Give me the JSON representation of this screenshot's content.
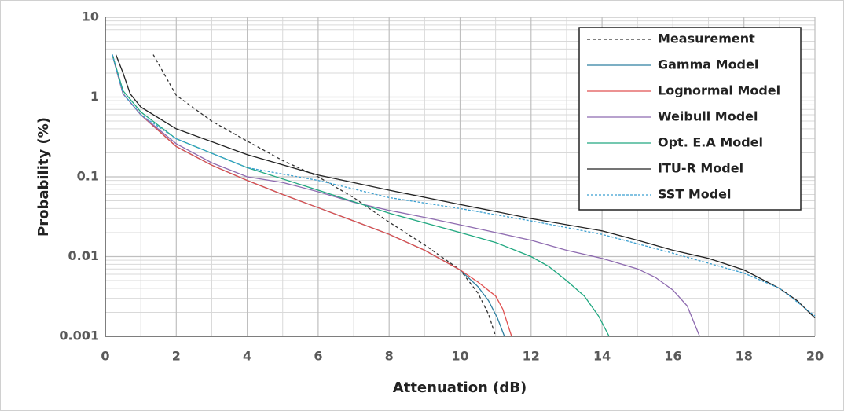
{
  "chart_data": {
    "type": "line",
    "xlabel": "Attenuation (dB)",
    "ylabel": "Probability (%)",
    "xlim": [
      0,
      20
    ],
    "ylim": [
      0.001,
      10
    ],
    "yscale": "log",
    "xticks": [
      0,
      2,
      4,
      6,
      8,
      10,
      12,
      14,
      16,
      18,
      20
    ],
    "xminorticks": [
      1,
      3,
      5,
      7,
      9,
      11,
      13,
      15,
      17,
      19
    ],
    "yticks": [
      0.001,
      0.01,
      0.1,
      1,
      10
    ],
    "yminorticks": [
      0.002,
      0.003,
      0.004,
      0.005,
      0.006,
      0.007,
      0.008,
      0.009,
      0.02,
      0.03,
      0.04,
      0.05,
      0.06,
      0.07,
      0.08,
      0.09,
      0.2,
      0.3,
      0.4,
      0.5,
      0.6,
      0.7,
      0.8,
      0.9,
      2,
      3,
      4,
      5,
      6,
      7,
      8,
      9
    ],
    "grid": true,
    "legend": "upper right",
    "series": [
      {
        "name": "Measurement",
        "color": "#333333",
        "style": "dashed",
        "x": [
          1.35,
          2,
          3,
          4,
          5,
          6,
          7,
          8,
          9,
          10,
          10.5,
          10.8,
          11
        ],
        "values": [
          3.4,
          1.05,
          0.5,
          0.28,
          0.16,
          0.1,
          0.055,
          0.027,
          0.014,
          0.0068,
          0.0035,
          0.0019,
          0.001
        ]
      },
      {
        "name": "Gamma Model",
        "color": "#2e7fa0",
        "style": "solid",
        "x": [
          0.2,
          0.3,
          0.5,
          1,
          2,
          3,
          4,
          5,
          6,
          7,
          8,
          9,
          10,
          10.5,
          10.8,
          11.05,
          11.25
        ],
        "values": [
          3.4,
          2.3,
          1.1,
          0.6,
          0.24,
          0.14,
          0.09,
          0.06,
          0.041,
          0.028,
          0.019,
          0.012,
          0.0068,
          0.0042,
          0.0028,
          0.0017,
          0.001
        ]
      },
      {
        "name": "Lognormal Model",
        "color": "#e05050",
        "style": "solid",
        "x": [
          0.2,
          0.3,
          0.5,
          1,
          2,
          3,
          4,
          5,
          6,
          7,
          8,
          9,
          10,
          10.5,
          11,
          11.2,
          11.45
        ],
        "values": [
          3.4,
          2.3,
          1.1,
          0.6,
          0.24,
          0.14,
          0.09,
          0.06,
          0.041,
          0.028,
          0.019,
          0.012,
          0.0068,
          0.0048,
          0.0032,
          0.0022,
          0.001
        ]
      },
      {
        "name": "Weibull Model",
        "color": "#8e6bb0",
        "style": "solid",
        "x": [
          0.2,
          0.5,
          1,
          2,
          3,
          4,
          5,
          6,
          7,
          8,
          9,
          10,
          11,
          12,
          13,
          14,
          15,
          15.5,
          16,
          16.4,
          16.75
        ],
        "values": [
          3.4,
          1.1,
          0.6,
          0.26,
          0.15,
          0.1,
          0.085,
          0.065,
          0.048,
          0.038,
          0.031,
          0.025,
          0.02,
          0.016,
          0.012,
          0.0095,
          0.007,
          0.0055,
          0.0038,
          0.0024,
          0.001
        ]
      },
      {
        "name": "Opt. E.A Model",
        "color": "#20a880",
        "style": "solid",
        "x": [
          0.2,
          0.5,
          1,
          2,
          4,
          6,
          8,
          10,
          11,
          12,
          12.5,
          13,
          13.5,
          13.9,
          14.2
        ],
        "values": [
          3.4,
          1.2,
          0.65,
          0.3,
          0.13,
          0.068,
          0.035,
          0.02,
          0.015,
          0.01,
          0.0075,
          0.005,
          0.0032,
          0.0018,
          0.001
        ]
      },
      {
        "name": "ITU-R Model",
        "color": "#222222",
        "style": "solid",
        "x": [
          0.3,
          0.5,
          0.7,
          1,
          2,
          4,
          6,
          8,
          10,
          12,
          14,
          15,
          16,
          17,
          18,
          19,
          19.5,
          20
        ],
        "values": [
          3.4,
          2.0,
          1.1,
          0.75,
          0.4,
          0.19,
          0.105,
          0.068,
          0.045,
          0.03,
          0.021,
          0.016,
          0.012,
          0.0095,
          0.0068,
          0.004,
          0.0028,
          0.0017
        ]
      },
      {
        "name": "SST Model",
        "color": "#3a9fd0",
        "style": "dotted",
        "x": [
          0.2,
          0.5,
          1,
          2,
          4,
          6,
          8,
          10,
          12,
          14,
          16,
          18,
          19,
          19.5,
          20
        ],
        "values": [
          3.4,
          1.1,
          0.6,
          0.3,
          0.13,
          0.09,
          0.055,
          0.04,
          0.028,
          0.019,
          0.011,
          0.0062,
          0.004,
          0.0027,
          0.0018
        ]
      }
    ]
  }
}
